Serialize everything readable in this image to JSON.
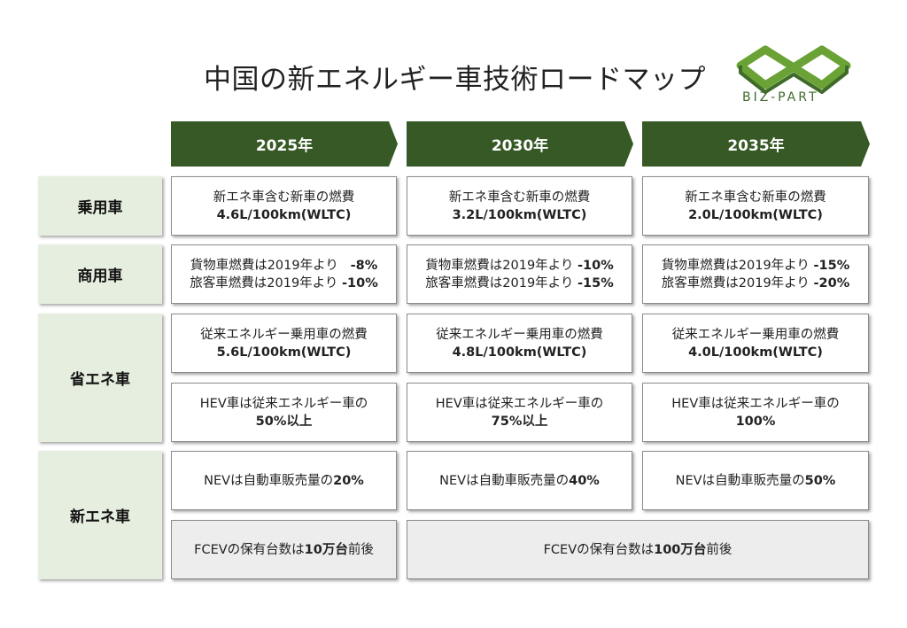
{
  "title": "中国の新エネルギー車技術ロードマップ",
  "logo": {
    "text": "BIZ-PART",
    "color": "#6aa235"
  },
  "years": [
    "2025年",
    "2030年",
    "2035年"
  ],
  "rows": {
    "passenger": "乗用車",
    "commercial": "商用車",
    "energy_saving": "省エネ車",
    "nev": "新エネ車"
  },
  "cells": {
    "passenger": [
      {
        "l1": "新エネ車含む新車の燃費",
        "l2": "4.6L/100km(WLTC)"
      },
      {
        "l1": "新エネ車含む新車の燃費",
        "l2": "3.2L/100km(WLTC)"
      },
      {
        "l1": "新エネ車含む新車の燃費",
        "l2": "2.0L/100km(WLTC)"
      }
    ],
    "commercial": [
      {
        "a_text": "貨物車燃費は2019年より",
        "a_val": "-8%",
        "b_text": "旅客車燃費は2019年より",
        "b_val": "-10%"
      },
      {
        "a_text": "貨物車燃費は2019年より",
        "a_val": "-10%",
        "b_text": "旅客車燃費は2019年より",
        "b_val": "-15%"
      },
      {
        "a_text": "貨物車燃費は2019年より",
        "a_val": "-15%",
        "b_text": "旅客車燃費は2019年より",
        "b_val": "-20%"
      }
    ],
    "energy_fuel": [
      {
        "l1": "従来エネルギー乗用車の燃費",
        "l2": "5.6L/100km(WLTC)"
      },
      {
        "l1": "従来エネルギー乗用車の燃費",
        "l2": "4.8L/100km(WLTC)"
      },
      {
        "l1": "従来エネルギー乗用車の燃費",
        "l2": "4.0L/100km(WLTC)"
      }
    ],
    "energy_hev": [
      {
        "l1": "HEV車は従来エネルギー車の",
        "l2": "50%以上"
      },
      {
        "l1": "HEV車は従来エネルギー車の",
        "l2": "75%以上"
      },
      {
        "l1": "HEV車は従来エネルギー車の",
        "l2": "100%"
      }
    ],
    "nev_share": [
      {
        "text": "NEVは自動車販売量の",
        "val": "20%"
      },
      {
        "text": "NEVは自動車販売量の",
        "val": "40%"
      },
      {
        "text": "NEVは自動車販売量の",
        "val": "50%"
      }
    ],
    "fcev": [
      {
        "pre": "FCEVの保有台数は",
        "val": "10万台",
        "post": "前後"
      },
      {
        "pre": "FCEVの保有台数は",
        "val": "100万台",
        "post": "前後"
      }
    ]
  }
}
